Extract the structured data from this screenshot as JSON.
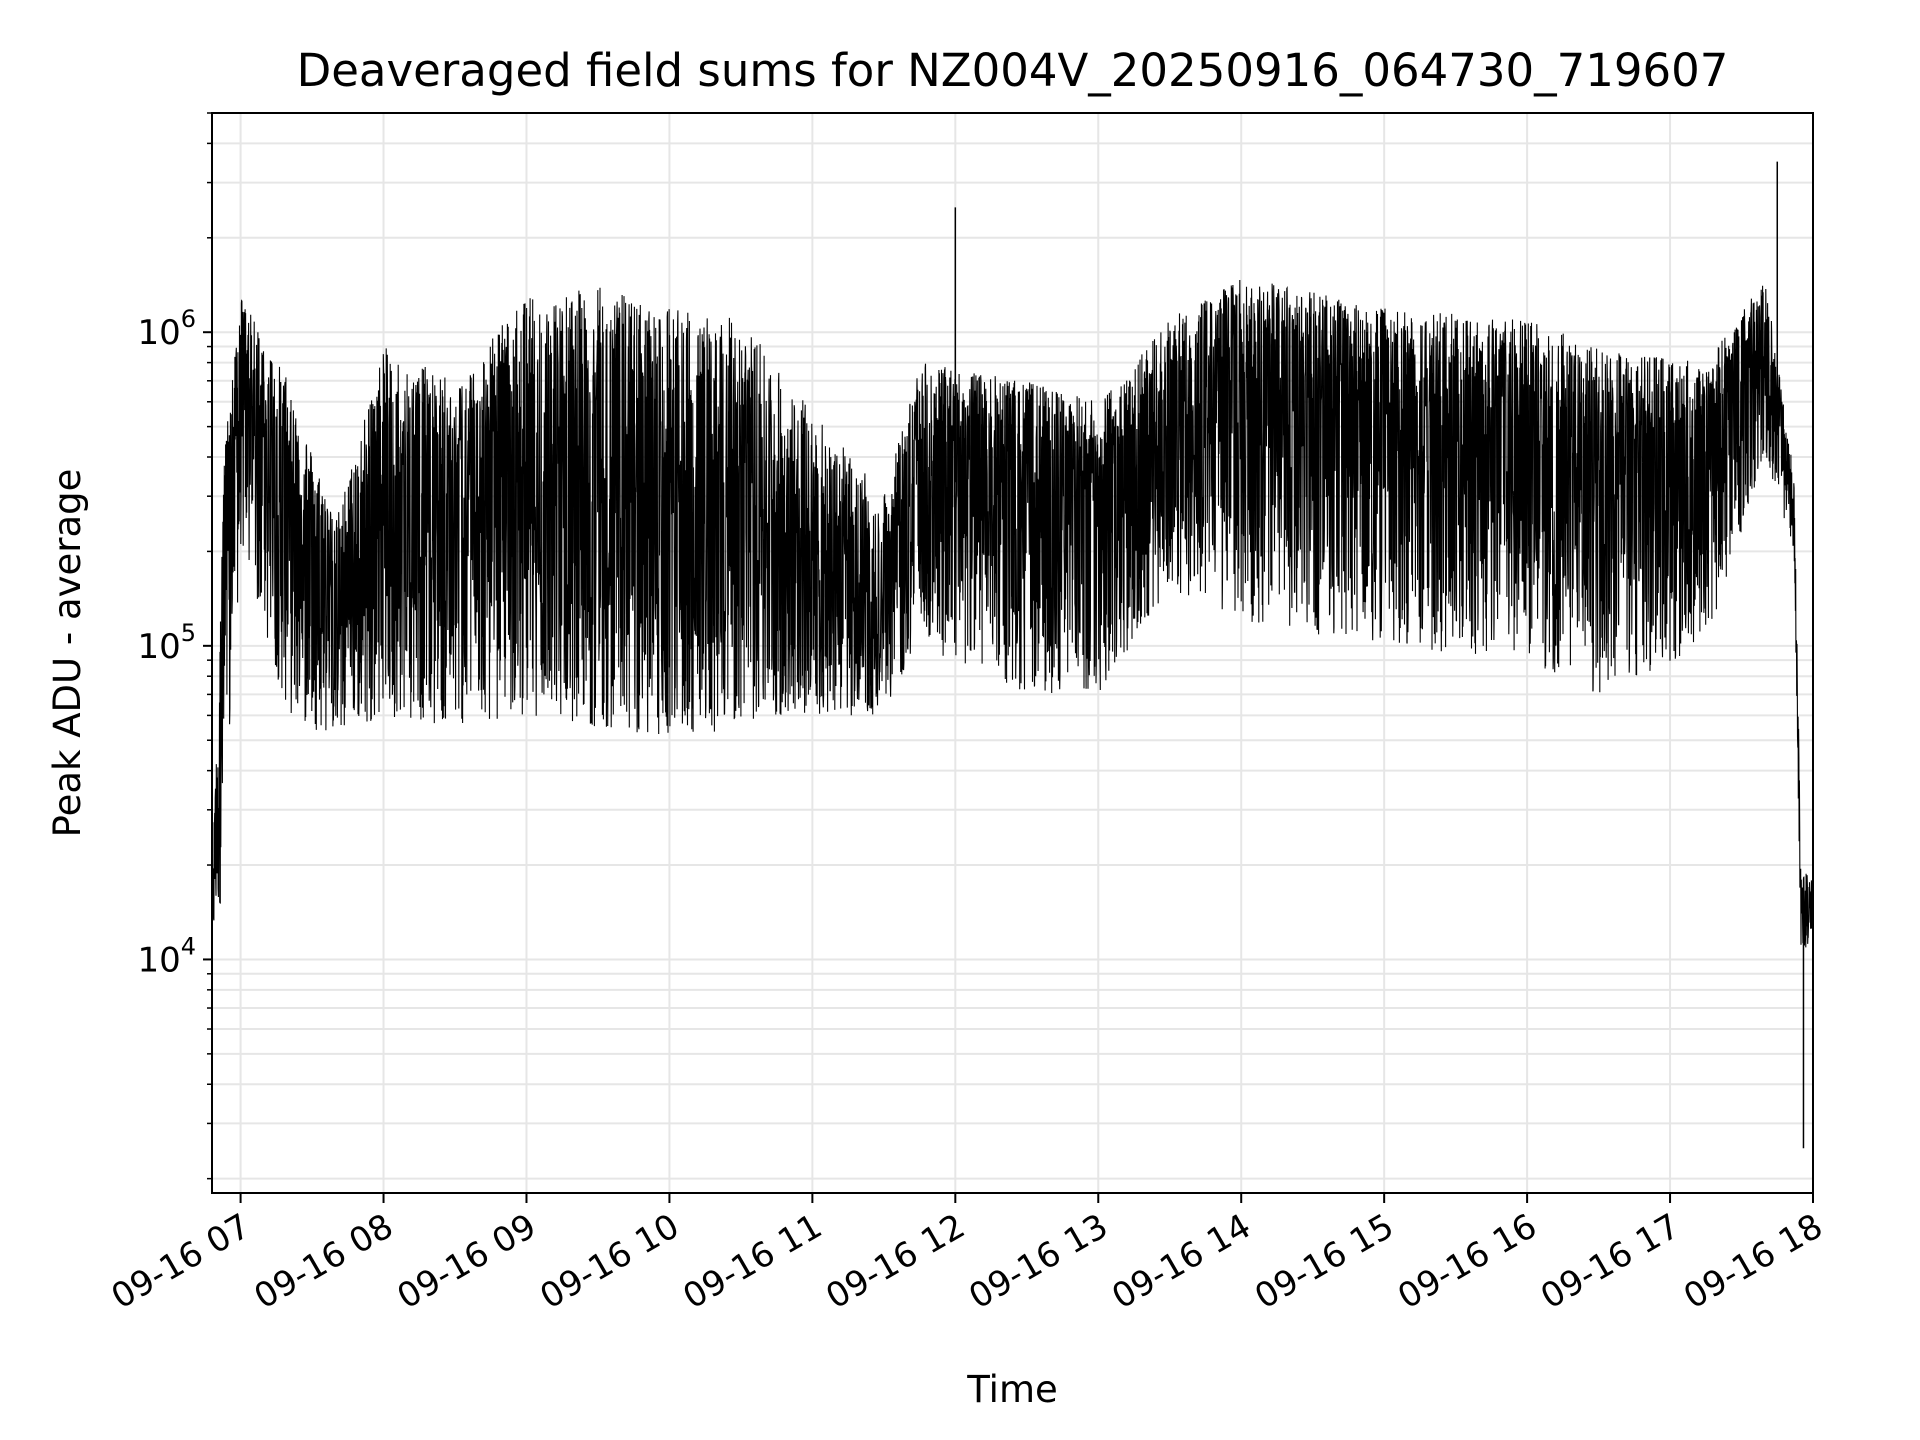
{
  "chart_data": {
    "type": "line",
    "title": "Deaveraged field sums for NZ004V_20250916_064730_719607",
    "xlabel": "Time",
    "ylabel": "Peak ADU - average",
    "yscale": "log",
    "xlim": [
      "09-16 06:48",
      "09-16 18:00"
    ],
    "ylim": [
      1800,
      5000000
    ],
    "grid": true,
    "line_color": "#000000",
    "x_ticks": [
      "09-16 07",
      "09-16 08",
      "09-16 09",
      "09-16 10",
      "09-16 11",
      "09-16 12",
      "09-16 13",
      "09-16 14",
      "09-16 15",
      "09-16 16",
      "09-16 17",
      "09-16 18"
    ],
    "y_ticks": [
      {
        "value": 10000,
        "base": "10",
        "exp": "4"
      },
      {
        "value": 100000,
        "base": "10",
        "exp": "5"
      },
      {
        "value": 1000000,
        "base": "10",
        "exp": "6"
      }
    ],
    "series": [
      {
        "x_start": "09-16 06:48",
        "x_end": "09-16 18:00",
        "sampling": "uniform",
        "envelope": [
          {
            "t": "09-16 06:48",
            "low": 11000,
            "mid": 13000,
            "high": 16000
          },
          {
            "t": "09-16 06:53",
            "low": 17000,
            "mid": 200000,
            "high": 400000
          },
          {
            "t": "09-16 07:00",
            "low": 200000,
            "mid": 700000,
            "high": 1300000
          },
          {
            "t": "09-16 07:20",
            "low": 60000,
            "mid": 300000,
            "high": 700000
          },
          {
            "t": "09-16 07:40",
            "low": 50000,
            "mid": 130000,
            "high": 250000
          },
          {
            "t": "09-16 08:00",
            "low": 60000,
            "mid": 200000,
            "high": 900000
          },
          {
            "t": "09-16 08:30",
            "low": 55000,
            "mid": 200000,
            "high": 700000
          },
          {
            "t": "09-16 09:00",
            "low": 60000,
            "mid": 250000,
            "high": 1300000
          },
          {
            "t": "09-16 09:30",
            "low": 55000,
            "mid": 200000,
            "high": 1400000
          },
          {
            "t": "09-16 10:00",
            "low": 50000,
            "mid": 130000,
            "high": 1200000
          },
          {
            "t": "09-16 10:30",
            "low": 55000,
            "mid": 170000,
            "high": 1100000
          },
          {
            "t": "09-16 10:50",
            "low": 60000,
            "mid": 100000,
            "high": 700000
          },
          {
            "t": "09-16 11:30",
            "low": 60000,
            "mid": 110000,
            "high": 300000
          },
          {
            "t": "09-16 11:45",
            "low": 100000,
            "mid": 350000,
            "high": 800000
          },
          {
            "t": "09-16 12:30",
            "low": 70000,
            "mid": 300000,
            "high": 700000
          },
          {
            "t": "09-16 13:00",
            "low": 70000,
            "mid": 300000,
            "high": 600000
          },
          {
            "t": "09-16 13:30",
            "low": 150000,
            "mid": 500000,
            "high": 1100000
          },
          {
            "t": "09-16 14:00",
            "low": 120000,
            "mid": 600000,
            "high": 1500000
          },
          {
            "t": "09-16 15:00",
            "low": 100000,
            "mid": 500000,
            "high": 1200000
          },
          {
            "t": "09-16 16:00",
            "low": 90000,
            "mid": 400000,
            "high": 1100000
          },
          {
            "t": "09-16 16:30",
            "low": 70000,
            "mid": 300000,
            "high": 900000
          },
          {
            "t": "09-16 17:15",
            "low": 100000,
            "mid": 350000,
            "high": 800000
          },
          {
            "t": "09-16 17:40",
            "low": 400000,
            "mid": 900000,
            "high": 1500000
          },
          {
            "t": "09-16 17:52",
            "low": 200000,
            "mid": 300000,
            "high": 350000
          },
          {
            "t": "09-16 17:55",
            "low": 10000,
            "mid": 15000,
            "high": 20000
          },
          {
            "t": "09-16 18:00",
            "low": 12000,
            "mid": 15000,
            "high": 18000
          }
        ],
        "spikes": [
          {
            "t": "09-16 12:00",
            "value": 2500000
          },
          {
            "t": "09-16 17:45",
            "value": 3500000
          },
          {
            "t": "09-16 17:56",
            "value": 2500
          }
        ]
      }
    ]
  }
}
